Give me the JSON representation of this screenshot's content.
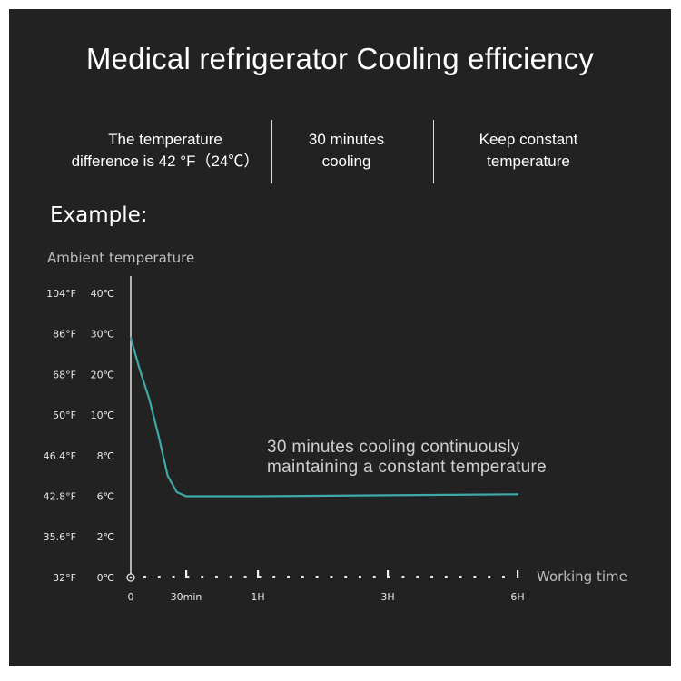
{
  "title": "Medical refrigerator Cooling efficiency",
  "features": [
    {
      "lines": [
        "The temperature",
        "difference is 42 °F（24℃）"
      ]
    },
    {
      "lines": [
        "30 minutes",
        "cooling"
      ]
    },
    {
      "lines": [
        "Keep constant",
        "temperature"
      ]
    }
  ],
  "example_label": "Example:",
  "colors": {
    "background": "#222222",
    "curve": "#3fa9a9",
    "text": "#ffffff"
  },
  "chart_data": {
    "type": "line",
    "ylabel": "Ambient temperature",
    "xlabel": "Working time",
    "y_ticks_f": [
      "104°F",
      "86°F",
      "68°F",
      "50°F",
      "46.4°F",
      "42.8°F",
      "35.6°F",
      "32°F"
    ],
    "y_ticks_c": [
      "40℃",
      "30℃",
      "20℃",
      "10℃",
      "8℃",
      "6℃",
      "2℃",
      "0℃"
    ],
    "x_ticks": [
      {
        "label": "0",
        "minutes": 0
      },
      {
        "label": "30min",
        "minutes": 30
      },
      {
        "label": "1H",
        "minutes": 60
      },
      {
        "label": "3H",
        "minutes": 180
      },
      {
        "label": "6H",
        "minutes": 360
      }
    ],
    "series": [
      {
        "points": [
          [
            0,
            29
          ],
          [
            5,
            21
          ],
          [
            10,
            14
          ],
          [
            15,
            9
          ],
          [
            20,
            7
          ],
          [
            25,
            6.2
          ],
          [
            30,
            6
          ],
          [
            60,
            6
          ],
          [
            180,
            6.05
          ],
          [
            360,
            6.1
          ]
        ]
      }
    ],
    "annotation": [
      "30 minutes cooling continuously",
      "maintaining a constant temperature"
    ]
  }
}
